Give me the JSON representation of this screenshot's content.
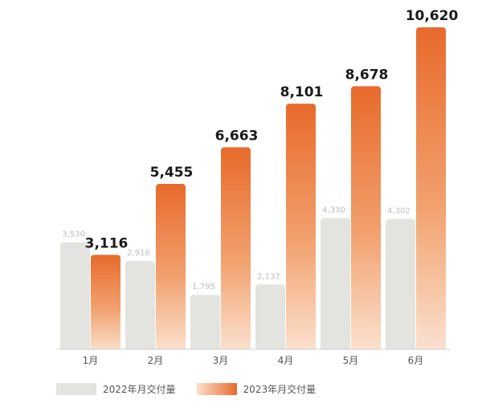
{
  "chart_data": {
    "type": "bar",
    "categories": [
      "1月",
      "2月",
      "3月",
      "4月",
      "5月",
      "6月"
    ],
    "series": [
      {
        "name": "2022年月交付量",
        "values": [
          3530,
          2916,
          1795,
          2137,
          4330,
          4302
        ],
        "labels": [
          "3,530",
          "2,916",
          "1,795",
          "2,137",
          "4,330",
          "4,302"
        ],
        "color": "#e3e3df"
      },
      {
        "name": "2023年月交付量",
        "values": [
          3116,
          5455,
          6663,
          8101,
          8678,
          10620
        ],
        "labels": [
          "3,116",
          "5,455",
          "6,663",
          "8,101",
          "8,678",
          "10,620"
        ],
        "color": "#e86a2c"
      }
    ],
    "ylim": [
      0,
      10620
    ],
    "grid": false,
    "legend": "bottom-left"
  }
}
